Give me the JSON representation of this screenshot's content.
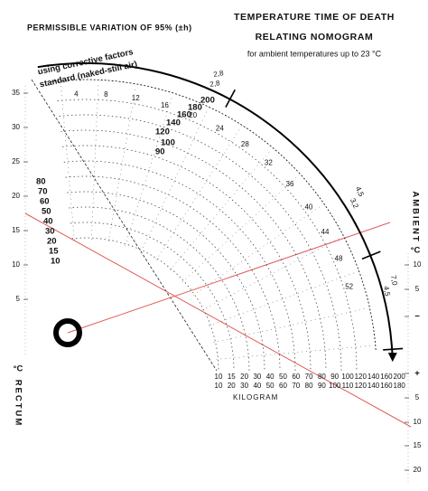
{
  "header": {
    "variation": "PERMISSIBLE VARIATION OF 95% (±h)",
    "title_line1": "TEMPERATURE TIME OF DEATH",
    "title_line2": "RELATING NOMOGRAM",
    "subtitle": "for ambient temperatures up to 23 °C"
  },
  "arc_labels": {
    "corrective": "using corrective factors",
    "standard": "standard (naked-still air)"
  },
  "hours": [
    "4",
    "8",
    "12",
    "16",
    "20",
    "24",
    "28",
    "32",
    "36",
    "40",
    "44",
    "48",
    "52"
  ],
  "corrective_marks": [
    "2,8",
    "2,8",
    "4,5",
    "3,2",
    "7,0",
    "4,5"
  ],
  "weights_left": [
    "80",
    "70",
    "60",
    "50",
    "40",
    "30",
    "20",
    "15",
    "10"
  ],
  "weights_arc": [
    "200",
    "180",
    "160",
    "140",
    "120",
    "100",
    "90"
  ],
  "rectum_scale": {
    "unit": "°C",
    "label": "RECTUM",
    "ticks": [
      "35",
      "30",
      "25",
      "20",
      "15",
      "10",
      "5"
    ]
  },
  "ambient_scale": {
    "label": "AMBIENT",
    "unit": "°C",
    "ticks": [
      "10",
      "5",
      "−",
      "+",
      "5",
      "10",
      "15",
      "20"
    ]
  },
  "kilogram_scale": {
    "label": "KILOGRAM",
    "row1": [
      "10",
      "15",
      "20",
      "30",
      "40",
      "50",
      "60",
      "70",
      "80",
      "90",
      "100",
      "120",
      "140",
      "160",
      "200"
    ],
    "row2": [
      "10",
      "20",
      "30",
      "40",
      "50",
      "60",
      "70",
      "80",
      "90",
      "100",
      "110",
      "120",
      "140",
      "160",
      "180"
    ]
  }
}
